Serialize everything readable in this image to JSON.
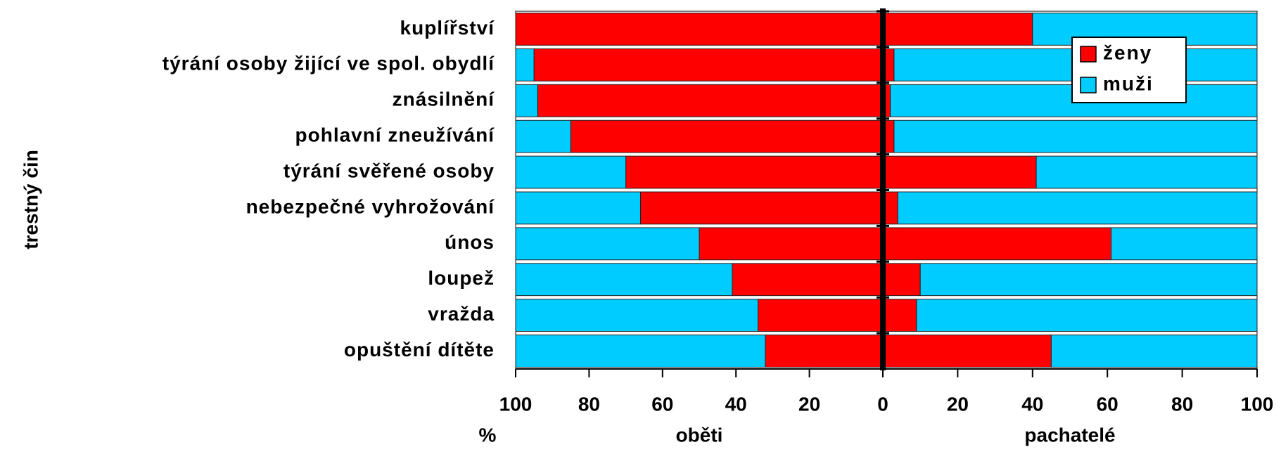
{
  "chart_data": {
    "type": "bar",
    "ylabel": "trestný čin",
    "xunit": "%",
    "categories": [
      "kuplířství",
      "týrání osoby žijící ve spol. obydlí",
      "znásilnění",
      "pohlavní zneužívání",
      "týrání svěřené osoby",
      "nebezpečné vyhrožování",
      "únos",
      "loupež",
      "vražda",
      "opuštění dítěte"
    ],
    "panels": [
      {
        "label": "oběti",
        "xlim": [
          100,
          0
        ],
        "xticks": [
          100,
          80,
          60,
          40,
          20,
          0
        ],
        "series": [
          {
            "name": "ženy",
            "color": "#ff0000",
            "values": [
              100,
              95,
              94,
              85,
              70,
              66,
              50,
              41,
              34,
              32
            ]
          },
          {
            "name": "muži",
            "color": "#00ccff",
            "values": [
              0,
              5,
              6,
              15,
              30,
              34,
              50,
              59,
              66,
              68
            ]
          }
        ]
      },
      {
        "label": "pachatelé",
        "xlim": [
          0,
          100
        ],
        "xticks": [
          20,
          40,
          60,
          80,
          100
        ],
        "series": [
          {
            "name": "ženy",
            "color": "#ff0000",
            "values": [
              40,
              3,
              2,
              3,
              41,
              4,
              61,
              10,
              9,
              45
            ]
          },
          {
            "name": "muži",
            "color": "#00ccff",
            "values": [
              60,
              97,
              98,
              97,
              59,
              96,
              39,
              90,
              91,
              55
            ]
          }
        ]
      }
    ],
    "legend": "upper right"
  }
}
